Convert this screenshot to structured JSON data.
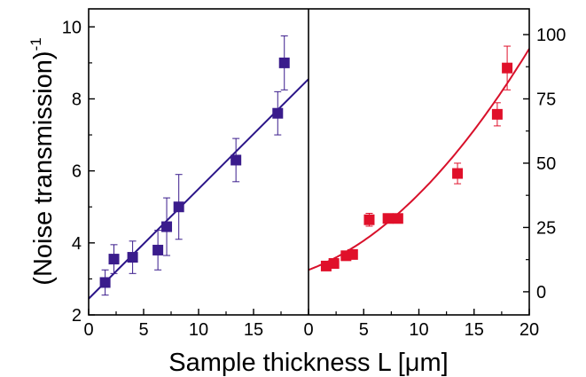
{
  "chart_data": [
    {
      "type": "scatter",
      "panel": "left",
      "ylabel": "(Noise transmission)",
      "ylabel_superscript": "-1",
      "xlim": [
        0,
        20
      ],
      "ylim": [
        2,
        10.5
      ],
      "x_ticks": [
        0,
        5,
        10,
        15
      ],
      "x_tick_labels": [
        "0",
        "5",
        "10",
        "15"
      ],
      "y_ticks": [
        2,
        4,
        6,
        8,
        10
      ],
      "y_tick_labels": [
        "2",
        "4",
        "6",
        "8",
        "10"
      ],
      "marker_color": "#3a1c8c",
      "fit_color": "#2a1488",
      "series": [
        {
          "x": [
            1.5,
            2.3,
            4.0,
            6.3,
            7.1,
            8.2,
            13.4,
            17.2,
            17.8
          ],
          "y": [
            2.9,
            3.55,
            3.6,
            3.8,
            4.45,
            5.0,
            6.3,
            7.6,
            9.0
          ],
          "err": [
            0.35,
            0.4,
            0.45,
            0.55,
            0.8,
            0.9,
            0.6,
            0.6,
            0.75
          ]
        }
      ],
      "fit": {
        "kind": "linear",
        "x": [
          0,
          20
        ],
        "y": [
          2.45,
          8.55
        ]
      }
    },
    {
      "type": "scatter",
      "panel": "right",
      "xlim": [
        0,
        20
      ],
      "ylim": [
        -9,
        110
      ],
      "x_ticks": [
        0,
        5,
        10,
        15,
        20
      ],
      "x_tick_labels": [
        "0",
        "5",
        "10",
        "15",
        "20"
      ],
      "y_ticks": [
        0,
        25,
        50,
        75,
        100
      ],
      "y_tick_labels": [
        "0",
        "25",
        "50",
        "75",
        "100"
      ],
      "marker_color": "#e0102a",
      "fit_color": "#d8102a",
      "series": [
        {
          "x": [
            1.6,
            2.3,
            3.4,
            4.0,
            5.5,
            7.2,
            8.1,
            13.5,
            17.1,
            18.0
          ],
          "y": [
            10,
            11,
            14,
            14.5,
            28,
            28.5,
            28.5,
            46,
            69,
            87
          ],
          "err": [
            0,
            0,
            0,
            0,
            2.5,
            0,
            0,
            4,
            4.5,
            8.5
          ]
        }
      ],
      "fit": {
        "kind": "quadratic",
        "coeffs": [
          8.5,
          1.6,
          0.135
        ]
      }
    }
  ],
  "xlabel": "Sample thickness L [μm]"
}
